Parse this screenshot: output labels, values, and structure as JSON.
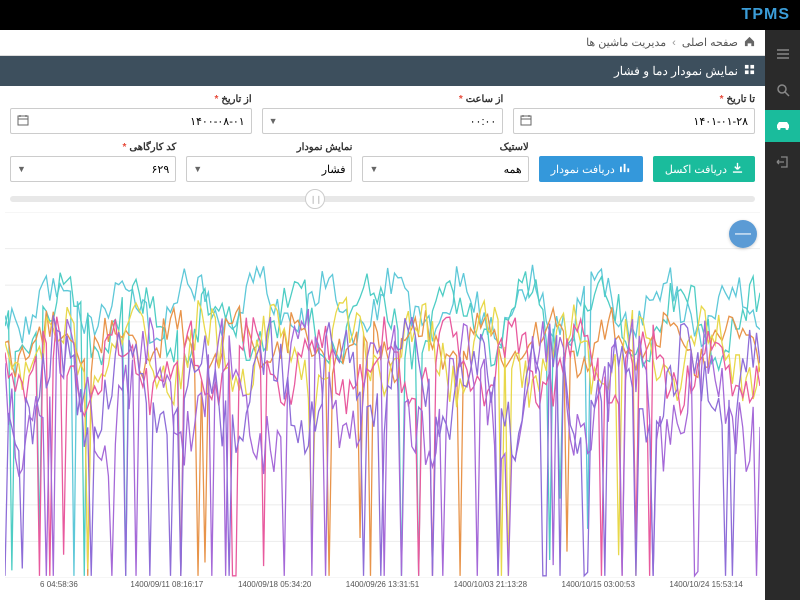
{
  "app": {
    "logo": "TPMS"
  },
  "breadcrumb": {
    "home": "صفحه اصلی",
    "current": "مدیریت ماشین ها"
  },
  "panel": {
    "title": "نمایش نمودار دما و فشار"
  },
  "filters": {
    "from_date": {
      "label": "از تاریخ",
      "value": "۱۴۰۰-۰۸-۰۱",
      "required": true
    },
    "from_time": {
      "label": "از ساعت",
      "value": "۰۰:۰۰",
      "required": true
    },
    "to_date": {
      "label": "تا تاریخ",
      "value": "۱۴۰۱-۰۱-۲۸",
      "required": true
    },
    "workshop_code": {
      "label": "کد کارگاهی",
      "value": "۶۲۹",
      "required": true
    },
    "chart_type": {
      "label": "نمایش نمودار",
      "value": "فشار"
    },
    "tire": {
      "label": "لاستیک",
      "value": "همه"
    }
  },
  "buttons": {
    "chart": "دریافت نمودار",
    "excel": "دریافت اکسل"
  },
  "slider": {
    "position_pct": 41
  },
  "chart": {
    "type": "line",
    "background_color": "#ffffff",
    "grid_color": "#eeeeee",
    "ylim": [
      0,
      100
    ],
    "grid_rows": 10,
    "x_labels": [
      "6 04:58:36",
      "1400/09/11 08:16:17",
      "1400/09/18 05:34:20",
      "1400/09/26 13:31:51",
      "1400/10/03 21:13:28",
      "1400/10/15 03:00:53",
      "1400/10/24 15:53:14"
    ],
    "series": [
      {
        "name": "s1",
        "color": "#5ec8d8",
        "stroke_width": 1.3,
        "offset": 26,
        "amp": 7,
        "noise": 5,
        "freq": 0.32,
        "drop_prob": 0.02
      },
      {
        "name": "s2",
        "color": "#4ecdc4",
        "stroke_width": 1.3,
        "offset": 30,
        "amp": 8,
        "noise": 6,
        "freq": 0.28,
        "drop_prob": 0.03
      },
      {
        "name": "s3",
        "color": "#e8944a",
        "stroke_width": 1.3,
        "offset": 36,
        "amp": 6,
        "noise": 5,
        "freq": 0.35,
        "drop_prob": 0.02
      },
      {
        "name": "s4",
        "color": "#e8d84a",
        "stroke_width": 1.3,
        "offset": 38,
        "amp": 9,
        "noise": 7,
        "freq": 0.3,
        "drop_prob": 0.04
      },
      {
        "name": "s5",
        "color": "#e85a9e",
        "stroke_width": 1.3,
        "offset": 42,
        "amp": 8,
        "noise": 6,
        "freq": 0.33,
        "drop_prob": 0.05
      },
      {
        "name": "s6",
        "color": "#a569d8",
        "stroke_width": 1.3,
        "offset": 50,
        "amp": 14,
        "noise": 10,
        "freq": 0.27,
        "drop_prob": 0.09
      },
      {
        "name": "s7",
        "color": "#8e6dd8",
        "stroke_width": 1.3,
        "offset": 48,
        "amp": 12,
        "noise": 9,
        "freq": 0.31,
        "drop_prob": 0.08
      }
    ]
  },
  "zoom_icon": "—"
}
